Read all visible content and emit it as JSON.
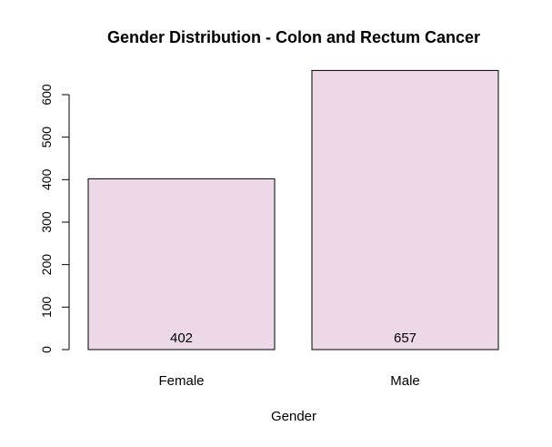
{
  "chart_data": {
    "type": "bar",
    "title": "Gender Distribution - Colon and Rectum Cancer",
    "xlabel": "Gender",
    "ylabel": "",
    "categories": [
      "Female",
      "Male"
    ],
    "values": [
      402,
      657
    ],
    "data_labels": [
      "402",
      "657"
    ],
    "yticks": [
      "0",
      "100",
      "200",
      "300",
      "400",
      "500",
      "600"
    ],
    "ylim": [
      0,
      657
    ],
    "bar_color": "#ecd8e6",
    "bar_border_color": "#000000",
    "grid": false,
    "legend": "none"
  }
}
